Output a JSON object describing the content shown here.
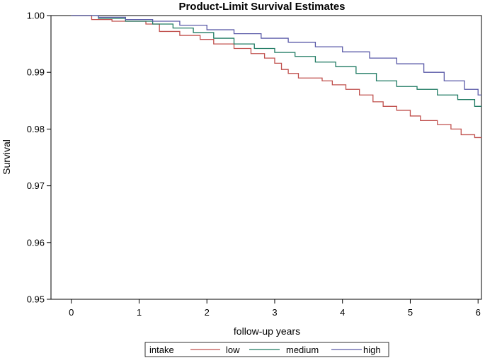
{
  "chart_data": {
    "type": "line",
    "step": true,
    "title": "Product-Limit Survival Estimates",
    "xlabel": "follow-up years",
    "ylabel": "Survival",
    "xlim": [
      -0.3,
      6.05
    ],
    "ylim": [
      0.95,
      1.0
    ],
    "x_ticks": [
      0,
      1,
      2,
      3,
      4,
      5,
      6
    ],
    "x_tick_labels": [
      "0",
      "1",
      "2",
      "3",
      "4",
      "5",
      "6"
    ],
    "y_ticks": [
      0.95,
      0.96,
      0.97,
      0.98,
      0.99,
      1.0
    ],
    "y_tick_labels": [
      "0.95",
      "0.96",
      "0.97",
      "0.98",
      "0.99",
      "1.00"
    ],
    "legend": {
      "title": "intake",
      "placement": "bottom"
    },
    "series": [
      {
        "name": "low",
        "color": "#c0504d",
        "x": [
          0,
          0.3,
          0.6,
          0.9,
          1.1,
          1.3,
          1.6,
          1.9,
          2.1,
          2.4,
          2.65,
          2.85,
          3.0,
          3.1,
          3.2,
          3.35,
          3.5,
          3.7,
          3.85,
          4.05,
          4.25,
          4.45,
          4.6,
          4.8,
          5.0,
          5.15,
          5.4,
          5.6,
          5.75,
          5.95,
          6.05
        ],
        "y": [
          1.0,
          0.9993,
          0.999,
          0.999,
          0.9985,
          0.9972,
          0.9965,
          0.9958,
          0.995,
          0.9942,
          0.9933,
          0.9925,
          0.9916,
          0.9905,
          0.9898,
          0.989,
          0.989,
          0.9885,
          0.9878,
          0.987,
          0.986,
          0.9848,
          0.984,
          0.9833,
          0.9823,
          0.9815,
          0.9808,
          0.98,
          0.979,
          0.9785,
          0.9785
        ]
      },
      {
        "name": "medium",
        "color": "#1e7a62",
        "x": [
          0,
          0.4,
          0.8,
          1.2,
          1.5,
          1.8,
          2.1,
          2.4,
          2.7,
          3.0,
          3.3,
          3.6,
          3.9,
          4.2,
          4.5,
          4.8,
          5.1,
          5.4,
          5.7,
          5.95,
          6.05
        ],
        "y": [
          1.0,
          0.9995,
          0.999,
          0.9985,
          0.9978,
          0.997,
          0.996,
          0.995,
          0.9942,
          0.9935,
          0.9928,
          0.9918,
          0.991,
          0.9898,
          0.9885,
          0.9875,
          0.987,
          0.986,
          0.9852,
          0.984,
          0.984
        ]
      },
      {
        "name": "high",
        "color": "#5a5aa8",
        "x": [
          0,
          0.4,
          0.8,
          1.2,
          1.6,
          2.0,
          2.4,
          2.8,
          3.2,
          3.6,
          4.0,
          4.4,
          4.8,
          5.2,
          5.5,
          5.8,
          6.0,
          6.05
        ],
        "y": [
          1.0,
          0.9997,
          0.9993,
          0.999,
          0.9983,
          0.9975,
          0.9968,
          0.996,
          0.9953,
          0.9945,
          0.9936,
          0.9925,
          0.9915,
          0.99,
          0.9885,
          0.987,
          0.986,
          0.986
        ]
      }
    ]
  }
}
